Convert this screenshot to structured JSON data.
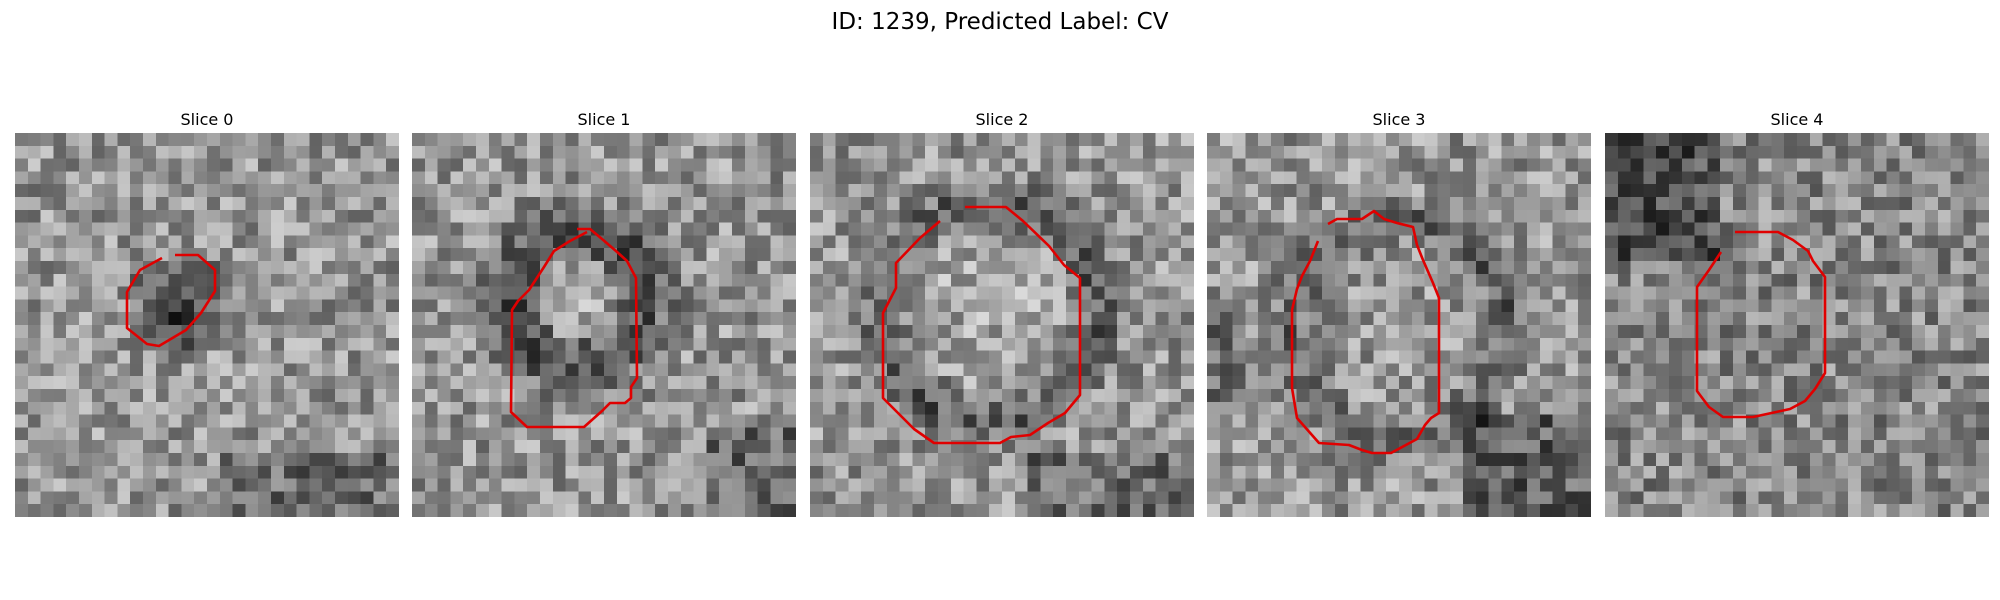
{
  "figure": {
    "title": "ID: 1239, Predicted Label: CV"
  },
  "colors": {
    "contour": "#e00000",
    "background": "#ffffff"
  },
  "slices": [
    {
      "title": "Slice 0",
      "pattern": "dark-blob",
      "seed": 11
    },
    {
      "title": "Slice 1",
      "pattern": "dark-ring",
      "seed": 23
    },
    {
      "title": "Slice 2",
      "pattern": "faint-ring",
      "seed": 37
    },
    {
      "title": "Slice 3",
      "pattern": "mid-ring",
      "seed": 41
    },
    {
      "title": "Slice 4",
      "pattern": "noise",
      "seed": 53
    }
  ]
}
